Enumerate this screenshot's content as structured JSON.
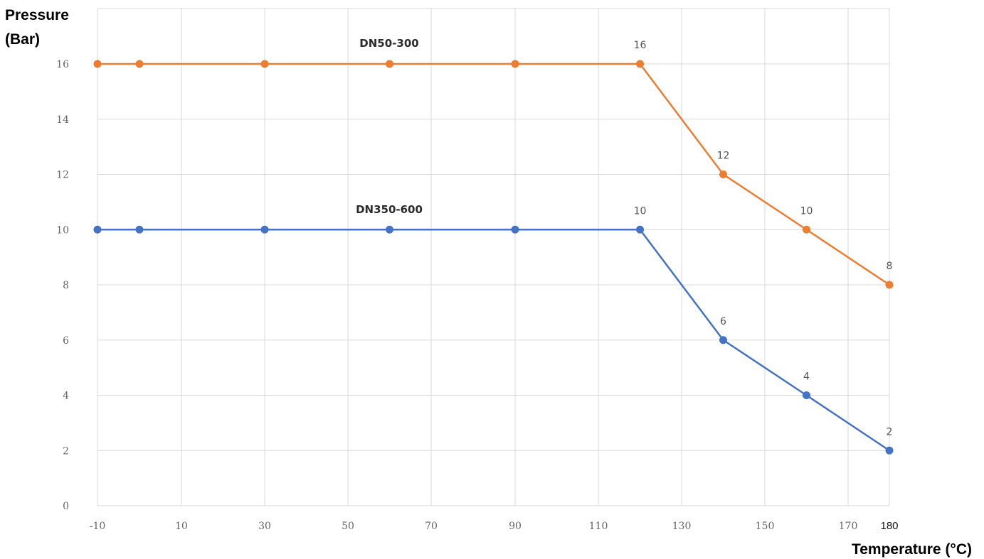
{
  "chart_data": {
    "type": "line",
    "xlabel": "Temperature (°C)",
    "ylabel": [
      "Pressure",
      "(Bar)"
    ],
    "x_ticks": [
      "-10",
      "10",
      "30",
      "50",
      "70",
      "90",
      "110",
      "130",
      "150",
      "170"
    ],
    "x_tick_last": "180",
    "y_ticks": [
      "0",
      "2",
      "4",
      "6",
      "8",
      "10",
      "12",
      "14",
      "16"
    ],
    "xlim": [
      -10,
      180
    ],
    "ylim": [
      0,
      16
    ],
    "grid": true,
    "legend": "none",
    "series": [
      {
        "name": "DN50-300",
        "color": "#ed7d31",
        "points": [
          {
            "x": -10,
            "y": 16
          },
          {
            "x": 0,
            "y": 16
          },
          {
            "x": 30,
            "y": 16
          },
          {
            "x": 60,
            "y": 16
          },
          {
            "x": 90,
            "y": 16
          },
          {
            "x": 120,
            "y": 16,
            "label": "16"
          },
          {
            "x": 140,
            "y": 12,
            "label": "12"
          },
          {
            "x": 160,
            "y": 10,
            "label": "10"
          },
          {
            "x": 180,
            "y": 8,
            "label": "8"
          }
        ]
      },
      {
        "name": "DN350-600",
        "color": "#4472c4",
        "points": [
          {
            "x": -10,
            "y": 10
          },
          {
            "x": 0,
            "y": 10
          },
          {
            "x": 30,
            "y": 10
          },
          {
            "x": 60,
            "y": 10
          },
          {
            "x": 90,
            "y": 10
          },
          {
            "x": 120,
            "y": 10,
            "label": "10"
          },
          {
            "x": 140,
            "y": 6,
            "label": "6"
          },
          {
            "x": 160,
            "y": 4,
            "label": "4"
          },
          {
            "x": 180,
            "y": 2,
            "label": "2"
          }
        ]
      }
    ]
  }
}
